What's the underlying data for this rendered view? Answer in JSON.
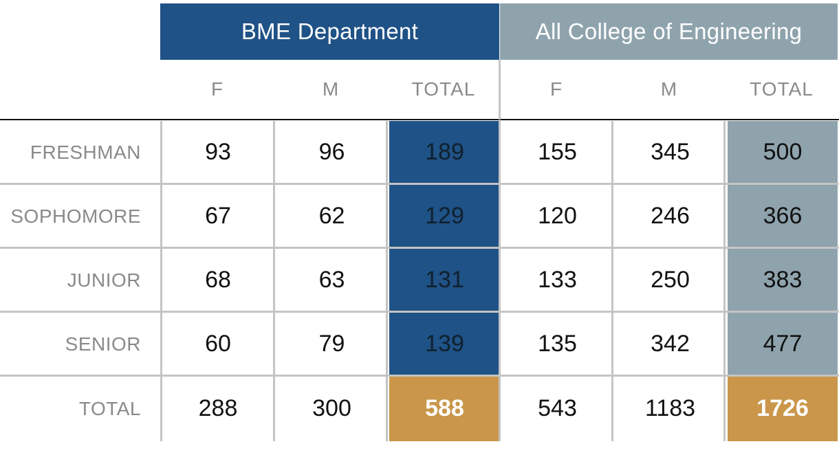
{
  "chart_data": {
    "type": "table",
    "groups": [
      {
        "key": "bme",
        "label": "BME Department",
        "color": "#1f5286"
      },
      {
        "key": "coe",
        "label": "All College of Engineering",
        "color": "#8fa3ad"
      }
    ],
    "columns": [
      "F",
      "M",
      "TOTAL",
      "F",
      "M",
      "TOTAL"
    ],
    "rows": [
      {
        "label": "FRESHMAN",
        "values": [
          93,
          96,
          189,
          155,
          345,
          500
        ]
      },
      {
        "label": "SOPHOMORE",
        "values": [
          67,
          62,
          129,
          120,
          246,
          366
        ]
      },
      {
        "label": "JUNIOR",
        "values": [
          68,
          63,
          131,
          133,
          250,
          383
        ]
      },
      {
        "label": "SENIOR",
        "values": [
          60,
          79,
          139,
          135,
          342,
          477
        ]
      },
      {
        "label": "TOTAL",
        "values": [
          288,
          300,
          588,
          543,
          1183,
          1726
        ]
      }
    ],
    "colors": {
      "bme_total": "#1f5286",
      "coe_total": "#8fa3ad",
      "grand_total": "#c9964a"
    }
  }
}
